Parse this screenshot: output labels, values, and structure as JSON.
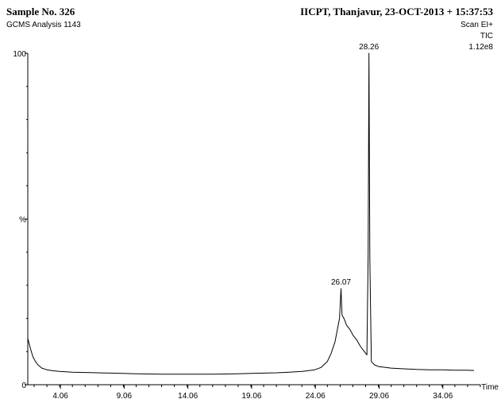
{
  "header": {
    "sample_title": "Sample No. 326",
    "analysis_label": "GCMS Analysis 1143",
    "lab_info": "IICPT, Thanjavur,  23-OCT-2013 + 15:37:53",
    "scan_mode": "Scan EI+",
    "trace_type": "TIC",
    "max_intensity": "1.12e8"
  },
  "chart_data": {
    "type": "line",
    "xlabel": "Time",
    "ylabel": "%",
    "xlim": [
      1.5,
      37.0
    ],
    "ylim": [
      0,
      100
    ],
    "y_ticks": [
      {
        "value": 0,
        "label": "0"
      },
      {
        "value": 50,
        "label": "%"
      },
      {
        "value": 100,
        "label": "100"
      }
    ],
    "x_ticks": [
      {
        "value": 4.06,
        "label": "4.06"
      },
      {
        "value": 9.06,
        "label": "9.06"
      },
      {
        "value": 14.06,
        "label": "14.06"
      },
      {
        "value": 19.06,
        "label": "19.06"
      },
      {
        "value": 24.06,
        "label": "24.06"
      },
      {
        "value": 29.06,
        "label": "29.06"
      },
      {
        "value": 34.06,
        "label": "34.06"
      }
    ],
    "peak_labels": [
      {
        "x": 26.07,
        "y": 29.0,
        "label": "26.07"
      },
      {
        "x": 28.26,
        "y": 100,
        "label": "28.26"
      }
    ],
    "series": [
      {
        "x": [
          1.5,
          1.7,
          1.9,
          2.1,
          2.3,
          2.6,
          3.0,
          3.5,
          4.0,
          5.0,
          6.0,
          7.0,
          8.0,
          9.0,
          10.0,
          12.0,
          14.0,
          16.0,
          18.0,
          19.0,
          20.0,
          21.0,
          22.0,
          23.0,
          24.0,
          24.5,
          25.0,
          25.3,
          25.6,
          25.8,
          25.95,
          26.07,
          26.15,
          26.3,
          26.5,
          26.8,
          27.0,
          27.3,
          27.6,
          27.9,
          28.1,
          28.2,
          28.26,
          28.33,
          28.45,
          28.7,
          29.0,
          30.0,
          31.0,
          32.0,
          33.0,
          34.0,
          35.0,
          36.0,
          36.5
        ],
        "y": [
          14.0,
          11.0,
          8.5,
          7.0,
          6.0,
          5.0,
          4.5,
          4.2,
          4.0,
          3.8,
          3.7,
          3.6,
          3.5,
          3.4,
          3.3,
          3.2,
          3.2,
          3.2,
          3.3,
          3.4,
          3.5,
          3.6,
          3.8,
          4.0,
          4.5,
          5.2,
          7.0,
          9.5,
          13.0,
          17.0,
          20.0,
          29.0,
          21.0,
          20.0,
          18.0,
          16.5,
          15.0,
          13.5,
          11.5,
          10.0,
          9.0,
          40.0,
          100,
          38.0,
          7.0,
          6.0,
          5.5,
          5.0,
          4.8,
          4.6,
          4.5,
          4.5,
          4.4,
          4.4,
          4.3
        ]
      }
    ]
  }
}
